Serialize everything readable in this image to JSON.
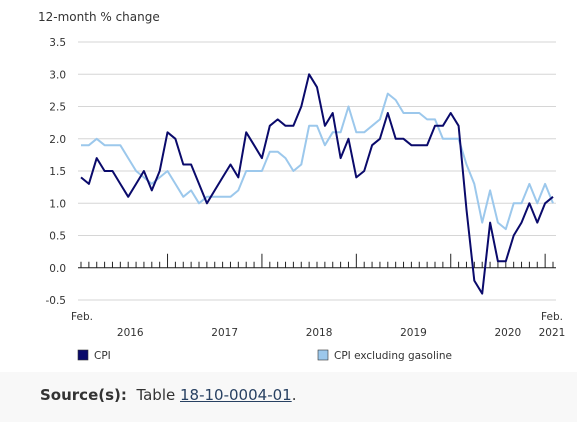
{
  "chart_data": {
    "type": "line",
    "ylabel": "12-month % change",
    "ylim": [
      -0.5,
      3.5
    ],
    "yticks": [
      "3.5",
      "3.0",
      "2.5",
      "2.0",
      "1.5",
      "1.0",
      "0.5",
      "0.0",
      "-0.5"
    ],
    "x_start_label": "Feb.",
    "x_end_label": "Feb.",
    "x_end_year": "2021",
    "years": [
      "2016",
      "2017",
      "2018",
      "2019",
      "2020"
    ],
    "grid": true,
    "legend_position": "bottom",
    "series": [
      {
        "name": "CPI",
        "color": "#0a0a6b",
        "values": [
          1.4,
          1.3,
          1.7,
          1.5,
          1.5,
          1.3,
          1.1,
          1.3,
          1.5,
          1.2,
          1.5,
          2.1,
          2.0,
          1.6,
          1.6,
          1.3,
          1.0,
          1.2,
          1.4,
          1.6,
          1.4,
          2.1,
          1.9,
          1.7,
          2.2,
          2.3,
          2.2,
          2.2,
          2.5,
          3.0,
          2.8,
          2.2,
          2.4,
          1.7,
          2.0,
          1.4,
          1.5,
          1.9,
          2.0,
          2.4,
          2.0,
          2.0,
          1.9,
          1.9,
          1.9,
          2.2,
          2.2,
          2.4,
          2.2,
          0.9,
          -0.2,
          -0.4,
          0.7,
          0.1,
          0.1,
          0.5,
          0.7,
          1.0,
          0.7,
          1.0,
          1.1
        ]
      },
      {
        "name": "CPI excluding gasoline",
        "color": "#9cc8ec",
        "values": [
          1.9,
          1.9,
          2.0,
          1.9,
          1.9,
          1.9,
          1.7,
          1.5,
          1.4,
          1.3,
          1.4,
          1.5,
          1.3,
          1.1,
          1.2,
          1.0,
          1.1,
          1.1,
          1.1,
          1.1,
          1.2,
          1.5,
          1.5,
          1.5,
          1.8,
          1.8,
          1.7,
          1.5,
          1.6,
          2.2,
          2.2,
          1.9,
          2.1,
          2.1,
          2.5,
          2.1,
          2.1,
          2.2,
          2.3,
          2.7,
          2.6,
          2.4,
          2.4,
          2.4,
          2.3,
          2.3,
          2.0,
          2.0,
          2.0,
          1.6,
          1.3,
          0.7,
          1.2,
          0.7,
          0.6,
          1.0,
          1.0,
          1.3,
          1.0,
          1.3,
          1.0
        ]
      }
    ]
  },
  "source": {
    "label": "Source(s):",
    "text": "Table",
    "link": "18-10-0004-01",
    "end": "."
  }
}
